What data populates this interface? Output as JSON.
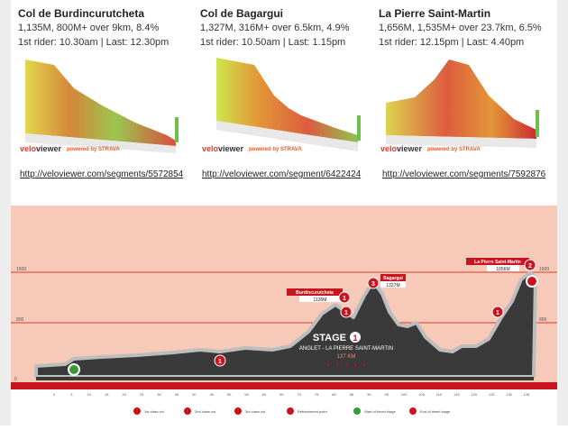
{
  "climbs": [
    {
      "title": "Col de Burdincurutcheta",
      "stats": "1,135M, 800M+ over 9km, 8.4%",
      "times": "1st rider: 10.30am | Last: 12.30pm",
      "link": "http://veloviewer.com/segments/5572854",
      "brand_a": "velo",
      "brand_b": "viewer",
      "powered": "powered by STRAVA"
    },
    {
      "title": "Col de Bagargui",
      "stats": "1,327M, 316M+ over 6.5km, 4.9%",
      "times": "1st rider: 10.50am | Last: 1.15pm",
      "link": "http://veloviewer.com/segment/6422424",
      "brand_a": "velo",
      "brand_b": "viewer",
      "powered": "powered by STRAVA"
    },
    {
      "title": "La Pierre Saint-Martin",
      "stats": "1,656M, 1,535M+ over 23.7km, 6.5%",
      "times": "1st rider: 12.15pm | Last: 4.40pm",
      "link": "http://veloviewer.com/segments/7592876",
      "brand_a": "velo",
      "brand_b": "viewer",
      "powered": "powered by STRAVA"
    }
  ],
  "profile": {
    "stage_label": "STAGE",
    "stage_number": "1",
    "route": "ANGLET - LA PIERRE SAINT-MARTIN",
    "distance": "137 KM",
    "y_labels": [
      "1600",
      "800",
      "0"
    ],
    "x_ticks": [
      "0",
      "5",
      "10",
      "15",
      "20",
      "25",
      "30",
      "35",
      "40",
      "45",
      "50",
      "55",
      "60",
      "65",
      "70",
      "75",
      "80",
      "85",
      "90",
      "95",
      "100",
      "105",
      "110",
      "115",
      "120",
      "125",
      "130",
      "135"
    ],
    "climb_labels": [
      {
        "name": "Burdincurutcheta",
        "alt": "1135M"
      },
      {
        "name": "Bagargui",
        "alt": "1327M"
      },
      {
        "name": "La Pierre Saint-Martin",
        "alt": "1656M"
      }
    ],
    "legend": [
      "1st class col",
      "2nd class col",
      "3rd class col",
      "Refreshment point",
      "Start of timed stage",
      "End of timed stage"
    ],
    "colors": {
      "bg": "#f7c9b9",
      "mountain": "#3a3a3a",
      "rim": "#b8b8b8",
      "accent": "#c8141e"
    }
  }
}
